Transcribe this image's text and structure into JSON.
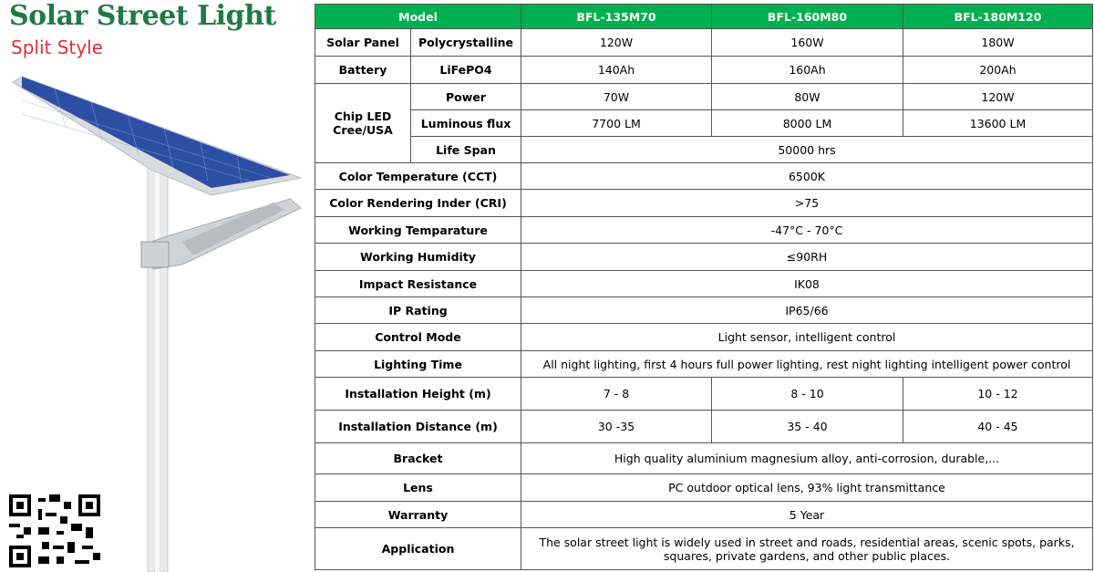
{
  "header": {
    "title": "Solar Street Light",
    "subtitle": "Split Style"
  },
  "colors": {
    "header_bg": "#00b050",
    "title": "#1f7a45",
    "subtitle": "#d9323a"
  },
  "table": {
    "model_label": "Model",
    "models": [
      "BFL-135M70",
      "BFL-160M80",
      "BFL-180M120"
    ],
    "solar_panel": {
      "label": "Solar Panel",
      "type": "Polycrystalline",
      "values": [
        "120W",
        "160W",
        "180W"
      ]
    },
    "battery": {
      "label": "Battery",
      "type": "LiFePO4",
      "values": [
        "140Ah",
        "160Ah",
        "200Ah"
      ]
    },
    "chip_led": {
      "label_1": "Chip LED",
      "label_2": "Cree/USA",
      "power": {
        "label": "Power",
        "values": [
          "70W",
          "80W",
          "120W"
        ]
      },
      "flux": {
        "label": "Luminous flux",
        "values": [
          "7700 LM",
          "8000 LM",
          "13600 LM"
        ]
      },
      "life": {
        "label": "Life Span",
        "value": "50000 hrs"
      }
    },
    "rows": [
      {
        "label": "Color Temperature (CCT)",
        "value": "6500K"
      },
      {
        "label": "Color Rendering Inder (CRI)",
        "value": ">75"
      },
      {
        "label": "Working Temparature",
        "value": "-47°C - 70°C"
      },
      {
        "label": "Working Humidity",
        "value": "≤90RH"
      },
      {
        "label": "Impact Resistance",
        "value": "IK08"
      },
      {
        "label": "IP Rating",
        "value": "IP65/66"
      },
      {
        "label": "Control Mode",
        "value": "Light sensor, intelligent control"
      },
      {
        "label": "Lighting Time",
        "value": "All night lighting, first 4 hours full power lighting, rest night lighting intelligent power control"
      }
    ],
    "install_height": {
      "label": "Installation Height (m)",
      "values": [
        "7 - 8",
        "8 - 10",
        "10 - 12"
      ]
    },
    "install_distance": {
      "label": "Installation Distance (m)",
      "values": [
        "30 -35",
        "35 - 40",
        "40 - 45"
      ]
    },
    "rows2": [
      {
        "label": "Bracket",
        "value": "High quality aluminium magnesium alloy, anti-corrosion, durable,..."
      },
      {
        "label": "Lens",
        "value": "PC outdoor optical lens, 93% light transmittance"
      },
      {
        "label": "Warranty",
        "value": "5 Year"
      }
    ],
    "application": {
      "label": "Application",
      "line1": "The solar street light is widely used in street and roads, residential areas, scenic spots, parks,",
      "line2": "squares, private gardens, and other public places."
    }
  }
}
